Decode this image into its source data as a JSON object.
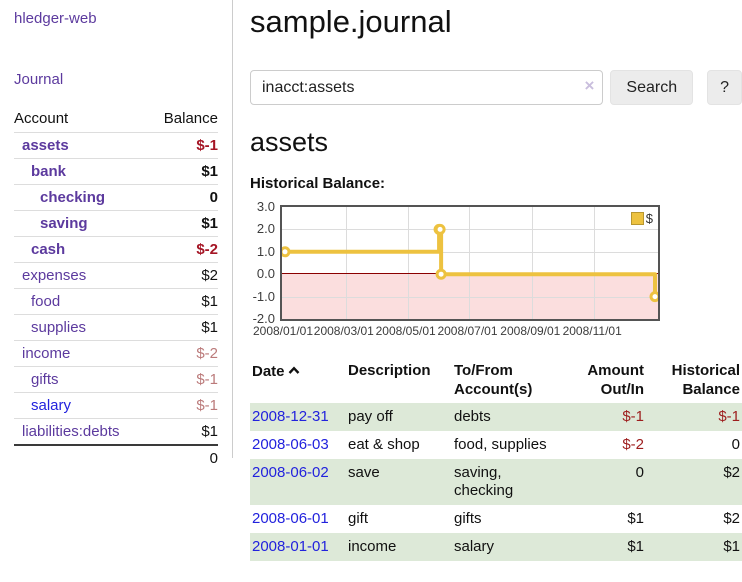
{
  "app": {
    "title": "hledger-web",
    "nav_journal": "Journal"
  },
  "sidebar": {
    "headers": [
      "Account",
      "Balance"
    ],
    "accounts": [
      {
        "name": "assets",
        "balance": "$-1",
        "level": 1,
        "bold": true,
        "balance_tone": "negative-strong"
      },
      {
        "name": "bank",
        "balance": "$1",
        "level": 2,
        "bold": true,
        "balance_tone": "normal"
      },
      {
        "name": "checking",
        "balance": "0",
        "level": 3,
        "bold": true,
        "balance_tone": "normal"
      },
      {
        "name": "saving",
        "balance": "$1",
        "level": 3,
        "bold": true,
        "balance_tone": "normal"
      },
      {
        "name": "cash",
        "balance": "$-2",
        "level": 2,
        "bold": true,
        "balance_tone": "negative-strong"
      },
      {
        "name": "expenses",
        "balance": "$2",
        "level": 1,
        "bold": false,
        "balance_tone": "normal"
      },
      {
        "name": "food",
        "balance": "$1",
        "level": 2,
        "bold": false,
        "balance_tone": "normal"
      },
      {
        "name": "supplies",
        "balance": "$1",
        "level": 2,
        "bold": false,
        "balance_tone": "normal"
      },
      {
        "name": "income",
        "balance": "$-2",
        "level": 1,
        "bold": false,
        "balance_tone": "negative-soft"
      },
      {
        "name": "gifts",
        "balance": "$-1",
        "level": 2,
        "bold": false,
        "balance_tone": "negative-soft"
      },
      {
        "name": "salary",
        "balance": "$-1",
        "level": 2,
        "bold": false,
        "balance_tone": "negative-soft"
      },
      {
        "name": "liabilities:debts",
        "balance": "$1",
        "level": 1,
        "bold": false,
        "balance_tone": "normal"
      }
    ],
    "total": "0"
  },
  "main": {
    "title": "sample.journal",
    "search": {
      "value": "inacct:assets",
      "clear_icon": "×",
      "button": "Search",
      "help": "?"
    },
    "heading": "assets",
    "chart_label": "Historical Balance:"
  },
  "chart_data": {
    "type": "line",
    "step": true,
    "title": "Historical Balance:",
    "x_ticks": [
      "2008/01/01",
      "2008/03/01",
      "2008/05/01",
      "2008/07/01",
      "2008/09/01",
      "2008/11/01"
    ],
    "x_max": "2008/12/31",
    "y_ticks": [
      "3.0",
      "2.0",
      "1.0",
      "0.0",
      "-1.0",
      "-2.0"
    ],
    "ylim": [
      -2,
      3
    ],
    "series": [
      {
        "name": "$",
        "x": [
          "2008/01/01",
          "2008/06/01",
          "2008/06/02",
          "2008/06/03",
          "2008/12/31"
        ],
        "y": [
          1,
          2,
          2,
          0,
          -1
        ]
      }
    ],
    "legend_position": "top-right",
    "below_zero_shaded": true
  },
  "register": {
    "headers": [
      "Date",
      "Description",
      "To/From Account(s)",
      "Amount Out/In",
      "Historical Balance"
    ],
    "rows": [
      {
        "date": "2008-12-31",
        "description": "pay off",
        "accounts": "debts",
        "amount": "$-1",
        "balance": "$-1",
        "amount_tone": "negative",
        "balance_tone": "negative"
      },
      {
        "date": "2008-06-03",
        "description": "eat & shop",
        "accounts": "food, supplies",
        "amount": "$-2",
        "balance": "0",
        "amount_tone": "negative",
        "balance_tone": "normal"
      },
      {
        "date": "2008-06-02",
        "description": "save",
        "accounts": "saving, checking",
        "amount": "0",
        "balance": "$2",
        "amount_tone": "normal",
        "balance_tone": "normal"
      },
      {
        "date": "2008-06-01",
        "description": "gift",
        "accounts": "gifts",
        "amount": "$1",
        "balance": "$2",
        "amount_tone": "normal",
        "balance_tone": "normal"
      },
      {
        "date": "2008-01-01",
        "description": "income",
        "accounts": "salary",
        "amount": "$1",
        "balance": "$1",
        "amount_tone": "normal",
        "balance_tone": "normal"
      }
    ]
  },
  "colors": {
    "link_purple": "#5c3a9e",
    "link_blue": "#2222dd",
    "negative_strong": "#a51525",
    "negative_soft": "#bb7a7a",
    "negative_table": "#9d1d1d",
    "row_green": "#dde9d8",
    "chart_line": "#edc240",
    "chart_below_zero_bg": "#fbdede",
    "chart_zero_line": "#8b0000"
  }
}
